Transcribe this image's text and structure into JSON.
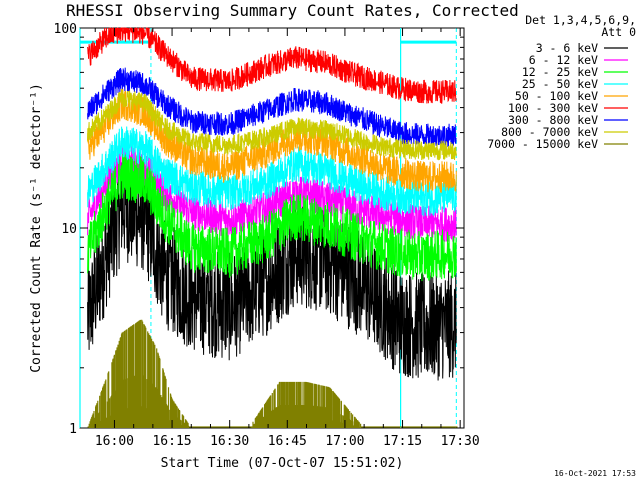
{
  "chart_data": {
    "type": "line",
    "title": "RHESSI Observing Summary Count Rates, Corrected",
    "xlabel": "Start Time (07-Oct-07 15:51:02)",
    "ylabel": "Corrected Count Rate (s⁻¹ detector⁻¹)",
    "y_scale": "log",
    "ylim": [
      1,
      100
    ],
    "y_ticks": [
      {
        "value": 1,
        "label": "1"
      },
      {
        "value": 10,
        "label": "10"
      },
      {
        "value": 100,
        "label": "100"
      }
    ],
    "xlim": [
      "15:51:02",
      "17:31:00"
    ],
    "x_ticks": [
      {
        "value": "16:00",
        "label": "16:00"
      },
      {
        "value": "16:15",
        "label": "16:15"
      },
      {
        "value": "16:30",
        "label": "16:30"
      },
      {
        "value": "16:45",
        "label": "16:45"
      },
      {
        "value": "17:00",
        "label": "17:00"
      },
      {
        "value": "17:15",
        "label": "17:15"
      },
      {
        "value": "17:30",
        "label": "17:30"
      }
    ],
    "legend_header": [
      "Det 1,3,4,5,6,9,",
      "Att 0"
    ],
    "legend_position": "right",
    "markers": {
      "solid_cyan_lines": [
        "15:51:02",
        "17:14:30"
      ],
      "dashed_cyan_lines": [
        "16:09:30",
        "17:29:00"
      ],
      "cyan_bars": [
        {
          "start": "15:51:02",
          "end": "16:09:30",
          "y": 85
        },
        {
          "start": "17:14:30",
          "end": "17:29:00",
          "y": 85
        }
      ]
    },
    "series": [
      {
        "name": "3 - 6 keV",
        "color": "#000000",
        "x": [
          "15:53",
          "15:58",
          "16:02",
          "16:08",
          "16:13",
          "16:20",
          "16:30",
          "16:40",
          "16:47",
          "16:55",
          "17:03",
          "17:10",
          "17:14",
          "17:20",
          "17:29"
        ],
        "y": [
          3.5,
          7.5,
          13.0,
          11.0,
          6.0,
          4.5,
          4.0,
          5.5,
          7.5,
          7.0,
          5.5,
          4.2,
          3.4,
          3.2,
          3.3
        ]
      },
      {
        "name": "6 - 12 keV",
        "color": "#ff00ff",
        "x": [
          "15:53",
          "15:58",
          "16:02",
          "16:08",
          "16:13",
          "16:20",
          "16:30",
          "16:40",
          "16:47",
          "16:55",
          "17:03",
          "17:10",
          "17:14",
          "17:20",
          "17:29"
        ],
        "y": [
          11.0,
          17.0,
          22.0,
          20.0,
          15.0,
          12.0,
          11.0,
          12.5,
          15.0,
          14.0,
          12.5,
          11.5,
          11.2,
          10.5,
          10.5
        ]
      },
      {
        "name": "12 - 25 keV",
        "color": "#00ff00",
        "x": [
          "15:53",
          "15:58",
          "16:02",
          "16:08",
          "16:13",
          "16:20",
          "16:30",
          "16:40",
          "16:47",
          "16:55",
          "17:03",
          "17:10",
          "17:14",
          "17:20",
          "17:29"
        ],
        "y": [
          7.5,
          13.0,
          18.5,
          17.0,
          11.5,
          8.0,
          7.5,
          9.0,
          11.5,
          10.5,
          9.0,
          8.0,
          7.5,
          7.2,
          7.5
        ]
      },
      {
        "name": "25 - 50 keV",
        "color": "#00ffff",
        "x": [
          "15:53",
          "15:58",
          "16:02",
          "16:08",
          "16:13",
          "16:20",
          "16:30",
          "16:40",
          "16:47",
          "16:55",
          "17:03",
          "17:10",
          "17:14",
          "17:20",
          "17:29"
        ],
        "y": [
          15.0,
          21.0,
          27.0,
          25.0,
          19.0,
          16.0,
          15.0,
          17.0,
          21.0,
          19.5,
          16.5,
          15.0,
          14.5,
          14.0,
          14.5
        ]
      },
      {
        "name": "50 - 100 keV",
        "color": "#ffa500",
        "x": [
          "15:53",
          "15:58",
          "16:02",
          "16:08",
          "16:13",
          "16:20",
          "16:30",
          "16:40",
          "16:47",
          "16:55",
          "17:03",
          "17:10",
          "17:14",
          "17:20",
          "17:29"
        ],
        "y": [
          25.0,
          33.0,
          42.0,
          38.0,
          28.0,
          22.0,
          20.0,
          24.0,
          29.0,
          27.0,
          23.0,
          20.0,
          19.0,
          18.0,
          18.0
        ]
      },
      {
        "name": "100 - 300 keV",
        "color": "#ff0000",
        "x": [
          "15:53",
          "15:58",
          "16:02",
          "16:08",
          "16:13",
          "16:20",
          "16:30",
          "16:40",
          "16:47",
          "16:55",
          "17:03",
          "17:10",
          "17:14",
          "17:20",
          "17:29"
        ],
        "y": [
          72.0,
          90.0,
          98.0,
          94.0,
          75.0,
          56.0,
          54.0,
          65.0,
          71.0,
          67.0,
          58.0,
          53.0,
          50.0,
          48.0,
          48.0
        ]
      },
      {
        "name": "300 - 800 keV",
        "color": "#0000ff",
        "x": [
          "15:53",
          "15:58",
          "16:02",
          "16:08",
          "16:13",
          "16:20",
          "16:30",
          "16:40",
          "16:47",
          "16:55",
          "17:03",
          "17:10",
          "17:14",
          "17:20",
          "17:29"
        ],
        "y": [
          38.0,
          48.0,
          56.0,
          52.0,
          42.0,
          34.0,
          33.0,
          39.0,
          44.0,
          42.0,
          36.0,
          32.0,
          30.0,
          29.0,
          29.0
        ]
      },
      {
        "name": "800 - 7000 keV",
        "color": "#cccc00",
        "x": [
          "15:53",
          "15:58",
          "16:02",
          "16:08",
          "16:13",
          "16:20",
          "16:30",
          "16:40",
          "16:47",
          "16:55",
          "17:03",
          "17:10",
          "17:14",
          "17:20",
          "17:29"
        ],
        "y": [
          30.0,
          37.0,
          45.0,
          42.0,
          32.0,
          27.0,
          26.0,
          28.5,
          32.0,
          31.0,
          28.0,
          25.5,
          25.0,
          24.5,
          24.5
        ]
      },
      {
        "name": "7000 - 15000 keV",
        "color": "#808000",
        "x": [
          "15:53",
          "15:58",
          "16:02",
          "16:07",
          "16:11",
          "16:15",
          "16:20",
          "16:35",
          "16:43",
          "16:50",
          "16:56",
          "17:05",
          "17:14",
          "17:29"
        ],
        "y": [
          1.0,
          1.8,
          3.0,
          3.5,
          2.5,
          1.4,
          1.0,
          1.0,
          1.7,
          1.7,
          1.6,
          1.0,
          1.0,
          1.0
        ]
      }
    ]
  },
  "timestamp": "16-Oct-2021 17:53"
}
